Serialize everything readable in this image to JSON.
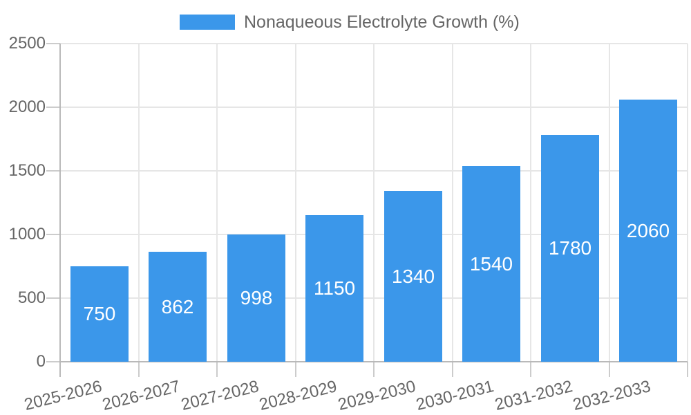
{
  "chart_data": {
    "type": "bar",
    "legend": "Nonaqueous Electrolyte Growth (%)",
    "legend_position": "top-center",
    "categories": [
      "2025-2026",
      "2026-2027",
      "2027-2028",
      "2028-2029",
      "2029-2030",
      "2030-2031",
      "2031-2032",
      "2032-2033"
    ],
    "values": [
      750,
      862,
      998,
      1150,
      1340,
      1540,
      1780,
      2060
    ],
    "yticks": [
      0,
      500,
      1000,
      1500,
      2000,
      2500
    ],
    "ylim": [
      0,
      2500
    ],
    "grid": true,
    "xlabel": "",
    "ylabel": "",
    "colors": {
      "bar": "#3b97ea",
      "bar_label": "#ffffff",
      "tick_text": "#666666",
      "gridline": "#e6e6e6",
      "axis": "#b9b9b9",
      "tick_mark": "#cccccc",
      "background": "#ffffff"
    }
  }
}
